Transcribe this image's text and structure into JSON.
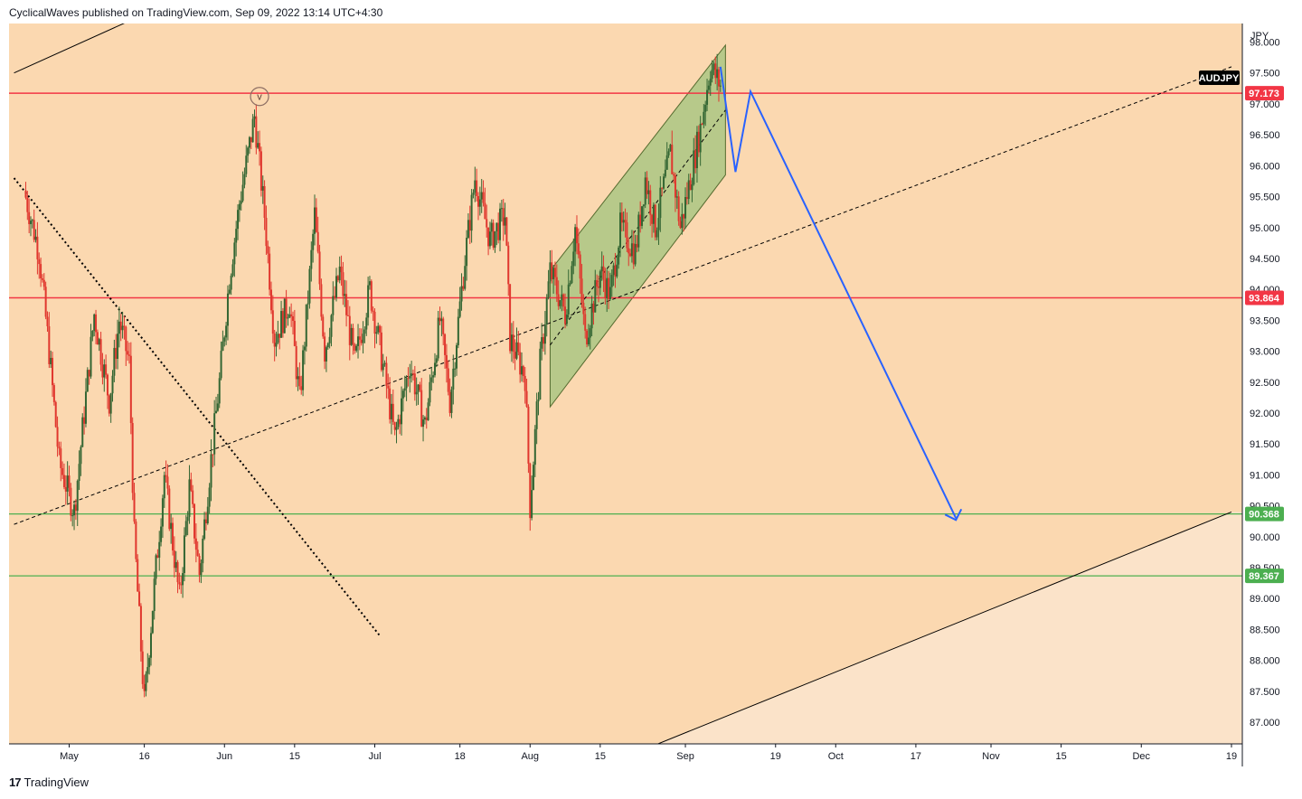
{
  "header": {
    "text": "CyclicalWaves published on TradingView.com, Sep 09, 2022 13:14 UTC+4:30"
  },
  "footer": {
    "logo": "17",
    "brand": "TradingView"
  },
  "colors": {
    "background": "#fbd8b0",
    "lower_triangle": "#fbe3c9",
    "channel_fill": "#b7c98a",
    "red_line": "#f23645",
    "green_line": "#4caf50",
    "projection": "#2962ff",
    "candle_up": "#336633",
    "candle_down": "#e0372e"
  },
  "chart_data": {
    "type": "candlestick",
    "symbol": "AUDJPY",
    "currency": "JPY",
    "y_ticks": [
      "98.000",
      "97.500",
      "97.000",
      "96.500",
      "96.000",
      "95.500",
      "95.000",
      "94.500",
      "94.000",
      "93.500",
      "93.000",
      "92.500",
      "92.000",
      "91.500",
      "91.000",
      "90.500",
      "90.000",
      "89.500",
      "89.000",
      "88.500",
      "88.000",
      "87.500",
      "87.000"
    ],
    "x_ticks": [
      "May",
      "16",
      "Jun",
      "15",
      "Jul",
      "18",
      "Aug",
      "15",
      "Sep",
      "19",
      "Oct",
      "17",
      "Nov",
      "15",
      "Dec",
      "19"
    ],
    "ylim": [
      86.65,
      98.3
    ],
    "levels": [
      {
        "label": "97.173",
        "value": 97.173,
        "color": "red"
      },
      {
        "label": "93.864",
        "value": 93.864,
        "color": "red"
      },
      {
        "label": "90.368",
        "value": 90.368,
        "color": "green"
      },
      {
        "label": "89.367",
        "value": 89.367,
        "color": "green"
      }
    ],
    "wave_label": "v",
    "price_path": [
      [
        "2022-04-22",
        95.6
      ],
      [
        "2022-04-25",
        94.6
      ],
      [
        "2022-04-27",
        93.0
      ],
      [
        "2022-04-29",
        91.2
      ],
      [
        "2022-05-02",
        90.4
      ],
      [
        "2022-05-04",
        92.0
      ],
      [
        "2022-05-06",
        93.6
      ],
      [
        "2022-05-09",
        92.2
      ],
      [
        "2022-05-11",
        93.5
      ],
      [
        "2022-05-13",
        92.8
      ],
      [
        "2022-05-14",
        90.0
      ],
      [
        "2022-05-16",
        87.3
      ],
      [
        "2022-05-18",
        89.2
      ],
      [
        "2022-05-20",
        91.0
      ],
      [
        "2022-05-23",
        89.0
      ],
      [
        "2022-05-25",
        90.8
      ],
      [
        "2022-05-27",
        89.4
      ],
      [
        "2022-05-29",
        91.0
      ],
      [
        "2022-05-31",
        92.5
      ],
      [
        "2022-06-02",
        94.2
      ],
      [
        "2022-06-04",
        95.4
      ],
      [
        "2022-06-07",
        96.8
      ],
      [
        "2022-06-09",
        95.2
      ],
      [
        "2022-06-11",
        93.2
      ],
      [
        "2022-06-14",
        93.8
      ],
      [
        "2022-06-16",
        92.2
      ],
      [
        "2022-06-19",
        95.2
      ],
      [
        "2022-06-21",
        93.0
      ],
      [
        "2022-06-24",
        94.3
      ],
      [
        "2022-06-27",
        92.8
      ],
      [
        "2022-06-30",
        94.0
      ],
      [
        "2022-07-03",
        92.6
      ],
      [
        "2022-07-05",
        91.6
      ],
      [
        "2022-07-08",
        92.8
      ],
      [
        "2022-07-11",
        91.8
      ],
      [
        "2022-07-14",
        93.5
      ],
      [
        "2022-07-16",
        92.2
      ],
      [
        "2022-07-19",
        94.5
      ],
      [
        "2022-07-21",
        95.8
      ],
      [
        "2022-07-24",
        94.8
      ],
      [
        "2022-07-27",
        95.2
      ],
      [
        "2022-07-28",
        93.2
      ],
      [
        "2022-07-31",
        92.6
      ],
      [
        "2022-08-01",
        90.5
      ],
      [
        "2022-08-03",
        92.8
      ],
      [
        "2022-08-05",
        94.3
      ],
      [
        "2022-08-08",
        93.6
      ],
      [
        "2022-08-10",
        95.0
      ],
      [
        "2022-08-12",
        93.2
      ],
      [
        "2022-08-15",
        94.3
      ],
      [
        "2022-08-17",
        93.9
      ],
      [
        "2022-08-19",
        95.0
      ],
      [
        "2022-08-22",
        94.6
      ],
      [
        "2022-08-24",
        95.8
      ],
      [
        "2022-08-26",
        95.0
      ],
      [
        "2022-08-29",
        96.2
      ],
      [
        "2022-08-31",
        95.0
      ],
      [
        "2022-09-02",
        95.8
      ],
      [
        "2022-09-04",
        96.6
      ],
      [
        "2022-09-06",
        97.6
      ],
      [
        "2022-09-08",
        97.3
      ]
    ],
    "projection_path": [
      [
        "2022-09-08",
        97.6
      ],
      [
        "2022-09-11",
        95.9
      ],
      [
        "2022-09-14",
        97.2
      ],
      [
        "2022-10-25",
        90.3
      ]
    ],
    "trendlines": [
      {
        "style": "solid",
        "color": "#000000",
        "points": [
          [
            "2022-04-20",
            97.5
          ],
          [
            "2022-05-31",
            99.0
          ]
        ]
      },
      {
        "style": "dotted",
        "color": "#000000",
        "points": [
          [
            "2022-04-20",
            95.8
          ],
          [
            "2022-07-02",
            88.4
          ]
        ]
      },
      {
        "style": "dashed",
        "color": "#000000",
        "points": [
          [
            "2022-04-20",
            90.2
          ],
          [
            "2022-12-19",
            97.6
          ]
        ]
      },
      {
        "style": "solid",
        "color": "#000000",
        "points": [
          [
            "2022-08-25",
            86.6
          ],
          [
            "2022-12-19",
            90.4
          ]
        ]
      },
      {
        "style": "dashed",
        "color": "#000000",
        "points": [
          [
            "2022-08-05",
            93.1
          ],
          [
            "2022-09-09",
            96.9
          ]
        ]
      }
    ],
    "channel": {
      "upper": [
        [
          "2022-08-05",
          94.3
        ],
        [
          "2022-09-09",
          97.95
        ]
      ],
      "lower": [
        [
          "2022-08-05",
          92.1
        ],
        [
          "2022-09-09",
          95.85
        ]
      ]
    }
  }
}
